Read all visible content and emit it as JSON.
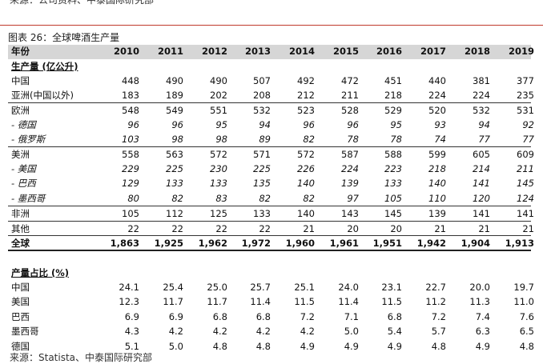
{
  "top_note": "来源：公司资料、中泰国际研究部",
  "figure_title": "图表 26：全球啤酒生产量",
  "header": {
    "label": "年份",
    "years": [
      "2010",
      "2011",
      "2012",
      "2013",
      "2014",
      "2015",
      "2016",
      "2017",
      "2018",
      "2019"
    ]
  },
  "section1_title": "生产量 (亿公升)",
  "rows": [
    {
      "label": "中国",
      "values": [
        "448",
        "490",
        "490",
        "507",
        "492",
        "472",
        "451",
        "440",
        "381",
        "377"
      ]
    },
    {
      "label": "亚洲(中国以外)",
      "values": [
        "183",
        "189",
        "202",
        "208",
        "212",
        "211",
        "218",
        "224",
        "224",
        "235"
      ]
    },
    {
      "label": "欧洲",
      "values": [
        "548",
        "549",
        "551",
        "532",
        "523",
        "528",
        "529",
        "520",
        "532",
        "531"
      ]
    },
    {
      "label": "- 德国",
      "values": [
        "96",
        "96",
        "95",
        "94",
        "96",
        "96",
        "95",
        "93",
        "94",
        "92"
      ]
    },
    {
      "label": "- 俄罗斯",
      "values": [
        "103",
        "98",
        "98",
        "89",
        "82",
        "78",
        "78",
        "74",
        "77",
        "77"
      ]
    },
    {
      "label": "美洲",
      "values": [
        "558",
        "563",
        "572",
        "571",
        "572",
        "587",
        "588",
        "599",
        "605",
        "609"
      ]
    },
    {
      "label": "- 美国",
      "values": [
        "229",
        "225",
        "230",
        "225",
        "226",
        "224",
        "223",
        "218",
        "214",
        "211"
      ]
    },
    {
      "label": "- 巴西",
      "values": [
        "129",
        "133",
        "133",
        "135",
        "140",
        "139",
        "133",
        "140",
        "141",
        "145"
      ]
    },
    {
      "label": "- 墨西哥",
      "values": [
        "80",
        "82",
        "83",
        "82",
        "82",
        "97",
        "105",
        "110",
        "120",
        "124"
      ]
    },
    {
      "label": "非洲",
      "values": [
        "105",
        "112",
        "125",
        "133",
        "140",
        "143",
        "145",
        "139",
        "141",
        "141"
      ]
    },
    {
      "label": "其他",
      "values": [
        "22",
        "22",
        "22",
        "22",
        "21",
        "20",
        "20",
        "21",
        "21",
        "21"
      ]
    },
    {
      "label": "全球",
      "values": [
        "1,863",
        "1,925",
        "1,962",
        "1,972",
        "1,960",
        "1,961",
        "1,951",
        "1,942",
        "1,904",
        "1,913"
      ]
    }
  ],
  "section2_title": "产量占比 (%)",
  "share_rows": [
    {
      "label": "中国",
      "values": [
        "24.1",
        "25.4",
        "25.0",
        "25.7",
        "25.1",
        "24.0",
        "23.1",
        "22.7",
        "20.0",
        "19.7"
      ]
    },
    {
      "label": "美国",
      "values": [
        "12.3",
        "11.7",
        "11.7",
        "11.4",
        "11.5",
        "11.4",
        "11.5",
        "11.2",
        "11.3",
        "11.0"
      ]
    },
    {
      "label": "巴西",
      "values": [
        "6.9",
        "6.9",
        "6.8",
        "6.8",
        "7.2",
        "7.1",
        "6.8",
        "7.2",
        "7.4",
        "7.6"
      ]
    },
    {
      "label": "墨西哥",
      "values": [
        "4.3",
        "4.2",
        "4.2",
        "4.2",
        "4.2",
        "5.0",
        "5.4",
        "5.7",
        "6.3",
        "6.5"
      ]
    },
    {
      "label": "德国",
      "values": [
        "5.1",
        "5.0",
        "4.8",
        "4.8",
        "4.9",
        "4.9",
        "4.9",
        "4.8",
        "4.9",
        "4.8"
      ]
    }
  ],
  "bottom_note": "来源：Statista、中泰国际研究部"
}
